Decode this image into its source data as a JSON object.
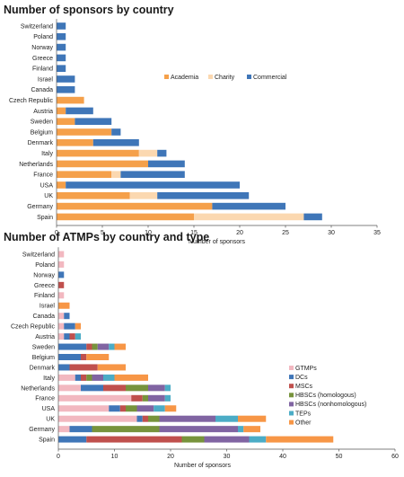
{
  "chart_data": [
    {
      "type": "bar",
      "orientation": "horizontal",
      "stacked": true,
      "title": "Number of sponsors by country",
      "xlabel": "Number of sponsors",
      "xlim": [
        0,
        35
      ],
      "xticks": [
        0,
        5,
        10,
        15,
        20,
        25,
        30,
        35
      ],
      "grid": false,
      "legend_position": "center-right",
      "categories": [
        "Switzerland",
        "Poland",
        "Norway",
        "Greece",
        "Finland",
        "Israel",
        "Canada",
        "Czech Republic",
        "Austria",
        "Sweden",
        "Belgium",
        "Denmark",
        "Italy",
        "Netherlands",
        "France",
        "USA",
        "UK",
        "Germany",
        "Spain"
      ],
      "series": [
        {
          "name": "Academia",
          "color": "#f5a04a",
          "values": [
            0,
            0,
            0,
            0,
            0,
            0,
            0,
            3,
            1,
            2,
            6,
            4,
            9,
            10,
            6,
            1,
            8,
            17,
            15
          ]
        },
        {
          "name": "Charity",
          "color": "#fbd8b0",
          "values": [
            0,
            0,
            0,
            0,
            0,
            0,
            0,
            0,
            0,
            0,
            0,
            0,
            2,
            0,
            1,
            0,
            3,
            0,
            12
          ]
        },
        {
          "name": "Commercial",
          "color": "#3f76b8",
          "values": [
            1,
            1,
            1,
            1,
            1,
            2,
            2,
            0,
            3,
            4,
            1,
            5,
            1,
            4,
            7,
            19,
            10,
            8,
            2
          ]
        }
      ]
    },
    {
      "type": "bar",
      "orientation": "horizontal",
      "stacked": true,
      "title": "Number of ATMPs by country and type",
      "xlabel": "Number of sponsors",
      "xlim": [
        0,
        60
      ],
      "xticks": [
        0,
        10,
        20,
        30,
        40,
        50,
        60
      ],
      "grid": false,
      "legend_position": "center-right",
      "categories": [
        "Switzerland",
        "Poland",
        "Norway",
        "Greece",
        "Finland",
        "Israel",
        "Canada",
        "Czech Republic",
        "Austria",
        "Sweden",
        "Belgium",
        "Denmark",
        "Italy",
        "Netherlands",
        "France",
        "USA",
        "UK",
        "Germany",
        "Spain"
      ],
      "series": [
        {
          "name": "GTMPs",
          "color": "#f2b8c0",
          "values": [
            1,
            1,
            0,
            0,
            1,
            0,
            1,
            1,
            1,
            0,
            0,
            0,
            3,
            4,
            13,
            9,
            14,
            2,
            0
          ]
        },
        {
          "name": "DCs",
          "color": "#3f76b8",
          "values": [
            0,
            0,
            1,
            0,
            0,
            0,
            1,
            2,
            1,
            5,
            4,
            2,
            1,
            4,
            0,
            2,
            1,
            4,
            5
          ]
        },
        {
          "name": "MSCs",
          "color": "#c0504d",
          "values": [
            0,
            0,
            0,
            1,
            0,
            0,
            0,
            0,
            1,
            1,
            1,
            5,
            1,
            4,
            2,
            1,
            1,
            0,
            17
          ]
        },
        {
          "name": "HBSCs (homologous)",
          "color": "#77933c",
          "values": [
            0,
            0,
            0,
            0,
            0,
            0,
            0,
            0,
            0,
            1,
            0,
            0,
            1,
            4,
            1,
            2,
            2,
            12,
            4
          ]
        },
        {
          "name": "HBSCs (nonhomologous)",
          "color": "#8064a2",
          "values": [
            0,
            0,
            0,
            0,
            0,
            0,
            0,
            0,
            0,
            2,
            0,
            0,
            2,
            3,
            3,
            3,
            10,
            14,
            8
          ]
        },
        {
          "name": "TEPs",
          "color": "#4bacc6",
          "values": [
            0,
            0,
            0,
            0,
            0,
            0,
            0,
            0,
            1,
            1,
            0,
            0,
            2,
            1,
            1,
            2,
            4,
            1,
            3
          ]
        },
        {
          "name": "Other",
          "color": "#f79646",
          "values": [
            0,
            0,
            0,
            0,
            0,
            2,
            0,
            1,
            0,
            2,
            4,
            5,
            6,
            0,
            0,
            2,
            5,
            3,
            12
          ]
        }
      ]
    }
  ]
}
